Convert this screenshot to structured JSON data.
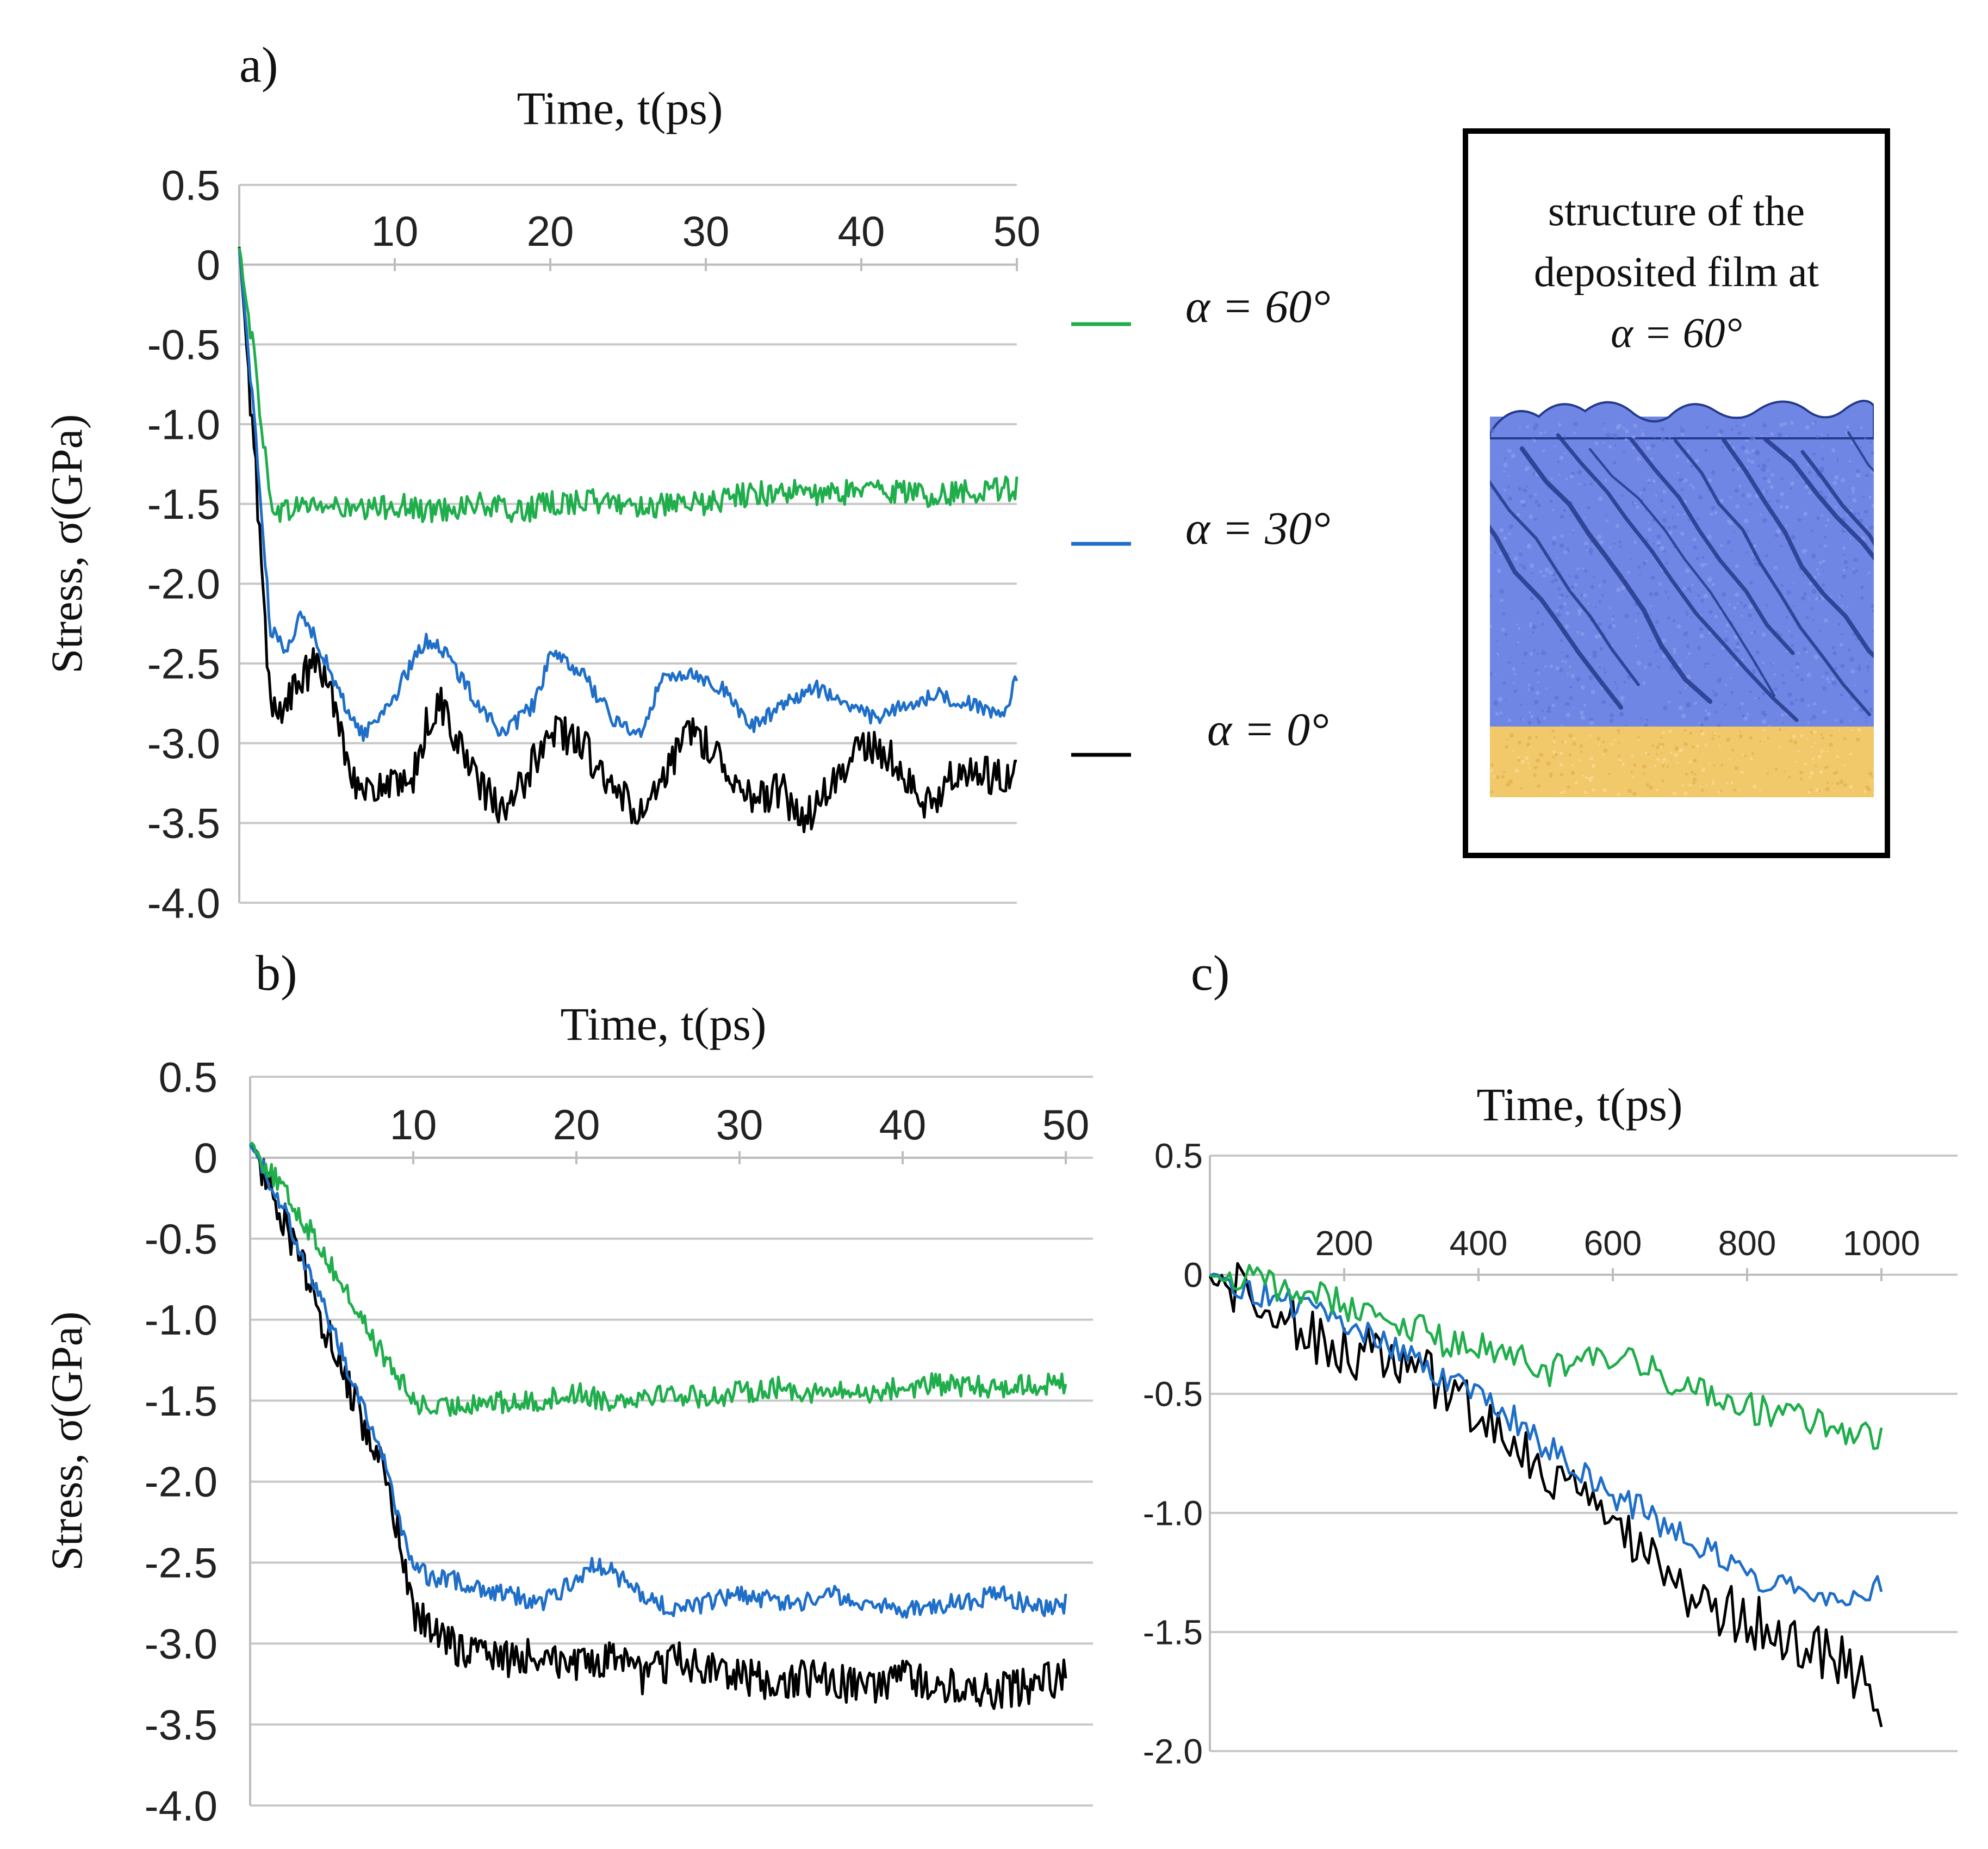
{
  "figure": {
    "panels": [
      {
        "id": "a",
        "label": "a)"
      },
      {
        "id": "b",
        "label": "b)"
      },
      {
        "id": "c",
        "label": "c)"
      }
    ],
    "legend": [
      {
        "label": "α = 60°",
        "color": "#1fae4b"
      },
      {
        "label": "α = 30°",
        "color": "#1f6fc8"
      },
      {
        "label": "α = 0°",
        "color": "#000000"
      }
    ],
    "inset": {
      "caption_lines": [
        "structure of the",
        "deposited film at",
        "α = 60°"
      ],
      "colors": {
        "film": "#6f86e4",
        "film_dark": "#243a8a",
        "substrate": "#f1c86a"
      }
    }
  },
  "chart_data": [
    {
      "panel": "a",
      "type": "line",
      "title": "",
      "xlabel": "Time, t(ps)",
      "ylabel": "Stress, σ(GPa)",
      "xlim": [
        0,
        50
      ],
      "ylim": [
        -4.0,
        0.5
      ],
      "xticks": [
        "10",
        "20",
        "30",
        "40",
        "50"
      ],
      "yticks": [
        "0.5",
        "0",
        "-0.5",
        "-1.0",
        "-1.5",
        "-2.0",
        "-2.5",
        "-3.0",
        "-3.5",
        "-4.0"
      ],
      "grid": "horizontal",
      "x_axis_position": "top",
      "series": [
        {
          "name": "α = 60°",
          "color": "#1fae4b",
          "x": [
            0,
            1,
            2,
            3,
            4,
            6,
            8,
            10,
            12,
            15,
            18,
            20,
            22,
            25,
            28,
            30,
            32,
            35,
            38,
            40,
            42,
            45,
            48,
            50
          ],
          "values": [
            0.1,
            -0.6,
            -1.5,
            -1.55,
            -1.5,
            -1.52,
            -1.55,
            -1.5,
            -1.55,
            -1.5,
            -1.55,
            -1.5,
            -1.48,
            -1.5,
            -1.52,
            -1.5,
            -1.45,
            -1.42,
            -1.45,
            -1.4,
            -1.42,
            -1.45,
            -1.4,
            -1.4
          ],
          "noise": 0.08
        },
        {
          "name": "α = 30°",
          "color": "#1f6fc8",
          "x": [
            0,
            1,
            2,
            3,
            4,
            5,
            6,
            7,
            8,
            10,
            12,
            13,
            15,
            17,
            19,
            20,
            22,
            24,
            26,
            27,
            29,
            31,
            33,
            35,
            37,
            39,
            41,
            43,
            45,
            47,
            49,
            50
          ],
          "values": [
            0.1,
            -1.0,
            -2.3,
            -2.4,
            -2.2,
            -2.35,
            -2.6,
            -2.8,
            -2.95,
            -2.7,
            -2.35,
            -2.4,
            -2.7,
            -2.95,
            -2.75,
            -2.45,
            -2.55,
            -2.85,
            -2.95,
            -2.6,
            -2.55,
            -2.65,
            -2.9,
            -2.75,
            -2.65,
            -2.75,
            -2.85,
            -2.75,
            -2.7,
            -2.75,
            -2.85,
            -2.6
          ],
          "noise": 0.05
        },
        {
          "name": "α = 0°",
          "color": "#000000",
          "x": [
            0,
            1,
            2,
            3,
            4,
            5,
            6,
            7,
            8,
            9,
            11,
            12,
            13,
            15,
            17,
            18,
            20,
            22,
            24,
            26,
            27,
            29,
            31,
            33,
            35,
            36,
            38,
            40,
            42,
            44,
            46,
            48,
            50
          ],
          "values": [
            0.1,
            -1.2,
            -2.8,
            -2.75,
            -2.6,
            -2.5,
            -2.7,
            -3.1,
            -3.35,
            -3.25,
            -3.3,
            -2.9,
            -2.75,
            -3.2,
            -3.45,
            -3.3,
            -2.9,
            -3.0,
            -3.3,
            -3.45,
            -3.3,
            -2.9,
            -3.1,
            -3.35,
            -3.3,
            -3.5,
            -3.3,
            -3.0,
            -3.1,
            -3.4,
            -3.2,
            -3.2,
            -3.2
          ],
          "noise": 0.12
        }
      ]
    },
    {
      "panel": "b",
      "type": "line",
      "title": "",
      "xlabel": "Time, t(ps)",
      "ylabel": "Stress, σ(GPa)",
      "xlim": [
        0,
        50
      ],
      "ylim": [
        -4.0,
        0.5
      ],
      "xticks": [
        "10",
        "20",
        "30",
        "40",
        "50"
      ],
      "yticks": [
        "0.5",
        "0",
        "-0.5",
        "-1.0",
        "-1.5",
        "-2.0",
        "-2.5",
        "-3.0",
        "-3.5",
        "-4.0"
      ],
      "grid": "horizontal",
      "x_axis_position": "top",
      "series": [
        {
          "name": "α = 60°",
          "color": "#1fae4b",
          "x": [
            0,
            2,
            4,
            6,
            8,
            9,
            10,
            11,
            12,
            14,
            16,
            18,
            20,
            22,
            25,
            28,
            30,
            32,
            35,
            38,
            40,
            42,
            45,
            48,
            50
          ],
          "values": [
            0.1,
            -0.2,
            -0.5,
            -0.85,
            -1.2,
            -1.35,
            -1.5,
            -1.55,
            -1.55,
            -1.5,
            -1.52,
            -1.5,
            -1.45,
            -1.5,
            -1.45,
            -1.48,
            -1.45,
            -1.42,
            -1.45,
            -1.45,
            -1.42,
            -1.4,
            -1.42,
            -1.4,
            -1.4
          ],
          "noise": 0.07
        },
        {
          "name": "α = 30°",
          "color": "#1f6fc8",
          "x": [
            0,
            2,
            4,
            6,
            8,
            9,
            10,
            11,
            12,
            14,
            16,
            18,
            20,
            21,
            22,
            24,
            26,
            28,
            30,
            33,
            36,
            40,
            43,
            46,
            49,
            50
          ],
          "values": [
            0.1,
            -0.3,
            -0.8,
            -1.3,
            -1.8,
            -2.2,
            -2.5,
            -2.6,
            -2.6,
            -2.65,
            -2.7,
            -2.75,
            -2.6,
            -2.5,
            -2.55,
            -2.7,
            -2.8,
            -2.75,
            -2.7,
            -2.75,
            -2.7,
            -2.8,
            -2.75,
            -2.7,
            -2.8,
            -2.75
          ],
          "noise": 0.06
        },
        {
          "name": "α = 0°",
          "color": "#000000",
          "x": [
            0,
            2,
            4,
            6,
            8,
            9,
            10,
            12,
            14,
            16,
            18,
            20,
            22,
            24,
            26,
            28,
            30,
            32,
            35,
            38,
            40,
            42,
            45,
            48,
            50
          ],
          "values": [
            0.1,
            -0.35,
            -0.9,
            -1.4,
            -1.9,
            -2.3,
            -2.8,
            -3.0,
            -3.05,
            -3.1,
            -3.05,
            -3.15,
            -3.1,
            -3.2,
            -3.1,
            -3.15,
            -3.2,
            -3.25,
            -3.2,
            -3.3,
            -3.2,
            -3.25,
            -3.3,
            -3.25,
            -3.2
          ],
          "noise": 0.12
        }
      ]
    },
    {
      "panel": "c",
      "type": "line",
      "title": "",
      "xlabel": "Time, t(ps)",
      "ylabel": "",
      "xlim": [
        0,
        1000
      ],
      "ylim": [
        -2.0,
        0.5
      ],
      "xticks": [
        "200",
        "400",
        "600",
        "800",
        "1000"
      ],
      "yticks": [
        "0.5",
        "0",
        "-0.5",
        "-1.0",
        "-1.5",
        "-2.0"
      ],
      "grid": "horizontal",
      "x_axis_position": "top",
      "series": [
        {
          "name": "α = 60°",
          "color": "#1fae4b",
          "x": [
            0,
            50,
            100,
            150,
            200,
            250,
            300,
            350,
            400,
            450,
            500,
            550,
            600,
            650,
            700,
            750,
            800,
            850,
            900,
            950,
            1000
          ],
          "values": [
            0,
            -0.02,
            -0.05,
            -0.08,
            -0.12,
            -0.18,
            -0.22,
            -0.28,
            -0.3,
            -0.35,
            -0.4,
            -0.38,
            -0.35,
            -0.4,
            -0.45,
            -0.5,
            -0.55,
            -0.6,
            -0.62,
            -0.65,
            -0.68
          ],
          "noise": 0.07
        },
        {
          "name": "α = 30°",
          "color": "#1f6fc8",
          "x": [
            0,
            50,
            100,
            150,
            200,
            250,
            300,
            350,
            400,
            450,
            500,
            550,
            600,
            650,
            700,
            750,
            800,
            850,
            900,
            950,
            1000
          ],
          "values": [
            0,
            -0.05,
            -0.1,
            -0.15,
            -0.2,
            -0.27,
            -0.35,
            -0.45,
            -0.5,
            -0.6,
            -0.72,
            -0.82,
            -0.92,
            -1.0,
            -1.1,
            -1.17,
            -1.25,
            -1.3,
            -1.32,
            -1.35,
            -1.3
          ],
          "noise": 0.06
        },
        {
          "name": "α = 0°",
          "color": "#000000",
          "x": [
            0,
            50,
            100,
            150,
            200,
            250,
            300,
            350,
            400,
            450,
            500,
            550,
            600,
            650,
            700,
            750,
            800,
            850,
            900,
            950,
            990,
            1000
          ],
          "values": [
            0,
            -0.08,
            -0.15,
            -0.25,
            -0.32,
            -0.35,
            -0.4,
            -0.48,
            -0.6,
            -0.7,
            -0.85,
            -0.95,
            -1.05,
            -1.15,
            -1.3,
            -1.4,
            -1.45,
            -1.5,
            -1.55,
            -1.65,
            -1.75,
            -1.95
          ],
          "noise": 0.12
        }
      ]
    }
  ]
}
